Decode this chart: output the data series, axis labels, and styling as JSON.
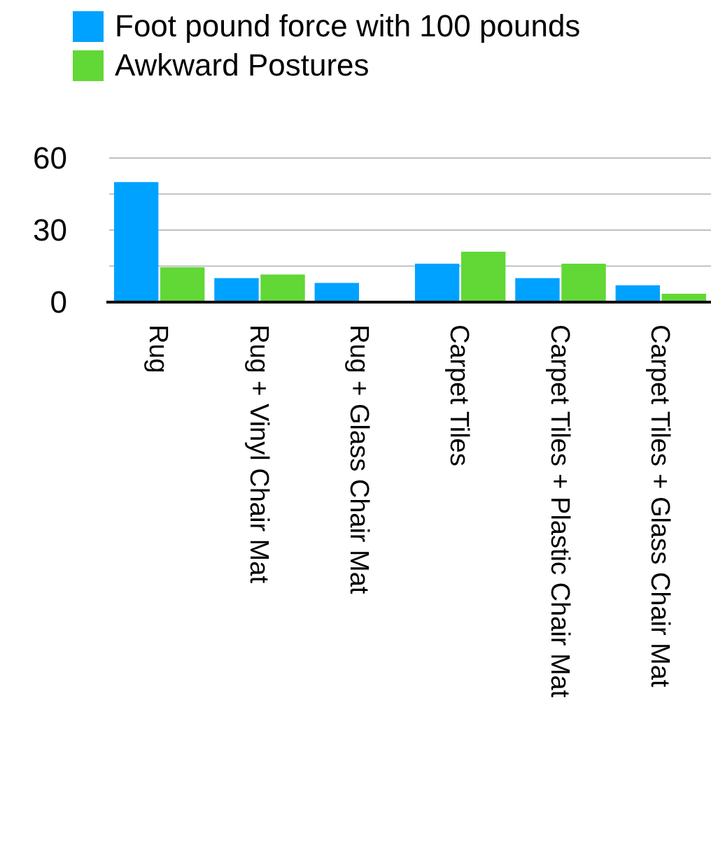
{
  "chart_data": {
    "type": "bar",
    "categories": [
      "Rug",
      "Rug + Vinyl Chair Mat",
      "Rug + Glass Chair Mat",
      "Carpet Tiles",
      "Carpet Tiles + Plastic Chair Mat",
      "Carpet Tiles + Glass Chair Mat"
    ],
    "series": [
      {
        "name": "Foot pound force with 100 pounds",
        "color": "#00a2ff",
        "values": [
          50,
          10,
          8,
          16,
          10,
          7
        ]
      },
      {
        "name": "Awkward Postures",
        "color": "#61d836",
        "values": [
          14.5,
          11.5,
          0,
          21,
          16,
          3.5
        ]
      }
    ],
    "ylim": [
      0,
      60
    ],
    "yticks": [
      0,
      {
        "value": 15,
        "label": null
      },
      30,
      {
        "value": 45,
        "label": null
      },
      60
    ],
    "grid": "y",
    "legend": "top left"
  }
}
